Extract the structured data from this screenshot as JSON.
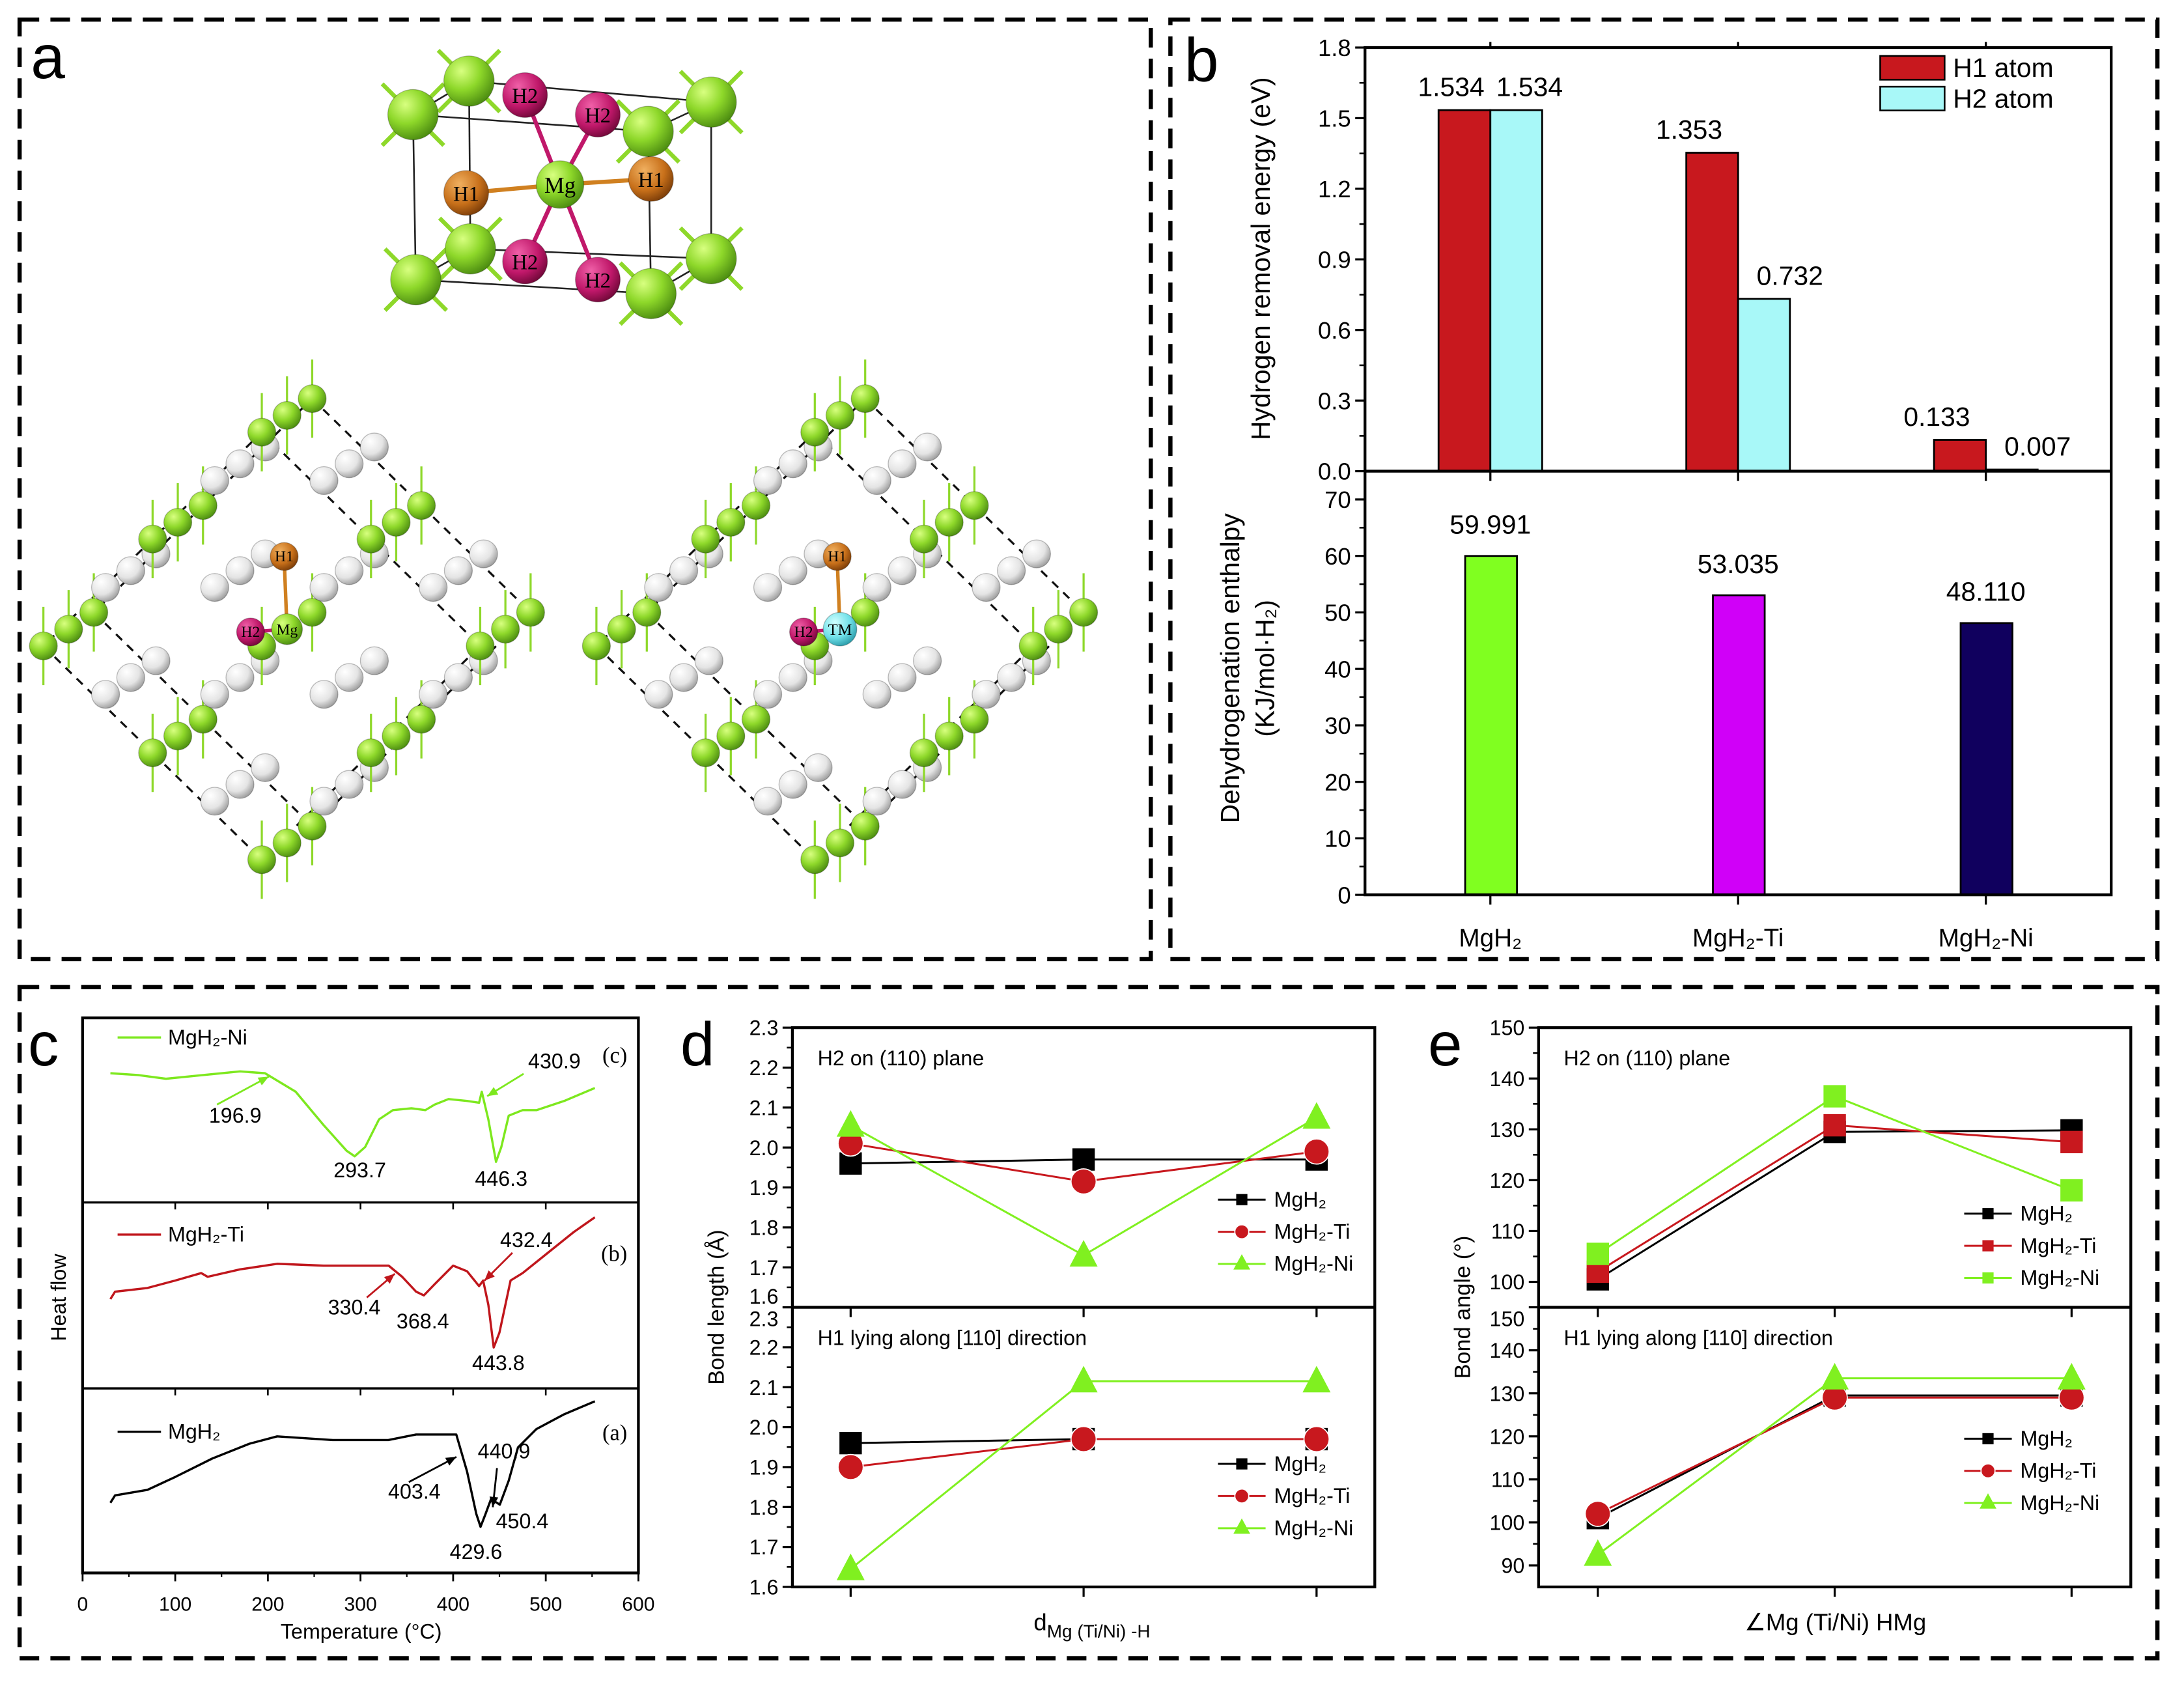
{
  "panel_labels": {
    "a": "a",
    "b": "b",
    "c": "c",
    "d": "d",
    "e": "e"
  },
  "structure_labels": {
    "h1": "H1",
    "h2": "H2",
    "mg": "Mg",
    "tm": "TM"
  },
  "colors": {
    "mg_atom": "#8ed82a",
    "h_atom": "#e8e8e8",
    "h1_atom": "#c8701a",
    "h2_atom": "#c0186a",
    "tm_atom": "#6fe0e8"
  },
  "chart_data": [
    {
      "id": "b-top",
      "type": "bar",
      "categories": [
        "MgH₂",
        "MgH₂-Ti",
        "MgH₂-Ni"
      ],
      "series": [
        {
          "name": "H1 atom",
          "values": [
            1.534,
            1.353,
            0.133
          ],
          "labels": [
            "1.534",
            "1.353",
            "0.133"
          ],
          "color": "#c8181e"
        },
        {
          "name": "H2 atom",
          "values": [
            1.534,
            0.732,
            0.007
          ],
          "labels": [
            "1.534",
            "0.732",
            "0.007"
          ],
          "color": "#a8f8f8"
        }
      ],
      "ylabel": "Hydrogen removal energy (eV)",
      "ylim": [
        0,
        1.8
      ],
      "yticks": [
        "0.0",
        "0.3",
        "0.6",
        "0.9",
        "1.2",
        "1.5",
        "1.8"
      ],
      "legend": "top-right"
    },
    {
      "id": "b-bottom",
      "type": "bar",
      "categories": [
        "MgH₂",
        "MgH₂-Ti",
        "MgH₂-Ni"
      ],
      "values": [
        59.991,
        53.035,
        48.11
      ],
      "labels": [
        "59.991",
        "53.035",
        "48.110"
      ],
      "colors": [
        "#80ff20",
        "#d000f8",
        "#10005e"
      ],
      "ylabel": [
        "Dehydrogenation enthalpy",
        "(KJ/mol·H₂)"
      ],
      "ylim": [
        0,
        75
      ],
      "yticks": [
        "0",
        "10",
        "20",
        "30",
        "40",
        "50",
        "60",
        "70"
      ]
    },
    {
      "id": "c",
      "type": "line",
      "xlabel": "Temperature (°C)",
      "ylabel": "Heat flow",
      "xlim": [
        0,
        600
      ],
      "xticks": [
        "0",
        "100",
        "200",
        "300",
        "400",
        "500",
        "600"
      ],
      "series": [
        {
          "name": "MgH₂-Ni",
          "tag": "(c)",
          "color": "#7de81e",
          "points": [
            [
              30,
              0.7
            ],
            [
              60,
              0.69
            ],
            [
              90,
              0.67
            ],
            [
              130,
              0.69
            ],
            [
              170,
              0.71
            ],
            [
              196.9,
              0.7
            ],
            [
              230,
              0.6
            ],
            [
              260,
              0.42
            ],
            [
              285,
              0.28
            ],
            [
              293.7,
              0.25
            ],
            [
              305,
              0.3
            ],
            [
              320,
              0.45
            ],
            [
              335,
              0.5
            ],
            [
              355,
              0.51
            ],
            [
              370,
              0.5
            ],
            [
              380,
              0.53
            ],
            [
              395,
              0.56
            ],
            [
              415,
              0.55
            ],
            [
              428,
              0.54
            ],
            [
              430.9,
              0.6
            ],
            [
              438,
              0.45
            ],
            [
              446.3,
              0.22
            ],
            [
              452,
              0.3
            ],
            [
              460,
              0.47
            ],
            [
              475,
              0.5
            ],
            [
              490,
              0.5
            ],
            [
              520,
              0.55
            ],
            [
              553,
              0.62
            ]
          ],
          "annotations": [
            "196.9",
            "293.7",
            "430.9",
            "446.3"
          ]
        },
        {
          "name": "MgH₂-Ti",
          "tag": "(b)",
          "color": "#c0161c",
          "points": [
            [
              30,
              0.48
            ],
            [
              35,
              0.52
            ],
            [
              70,
              0.54
            ],
            [
              100,
              0.58
            ],
            [
              128,
              0.62
            ],
            [
              135,
              0.6
            ],
            [
              170,
              0.64
            ],
            [
              210,
              0.67
            ],
            [
              260,
              0.66
            ],
            [
              330.4,
              0.66
            ],
            [
              345,
              0.6
            ],
            [
              360,
              0.52
            ],
            [
              368.4,
              0.5
            ],
            [
              380,
              0.56
            ],
            [
              400,
              0.66
            ],
            [
              415,
              0.63
            ],
            [
              428,
              0.55
            ],
            [
              432.4,
              0.58
            ],
            [
              438,
              0.45
            ],
            [
              443.8,
              0.22
            ],
            [
              450,
              0.3
            ],
            [
              462,
              0.58
            ],
            [
              475,
              0.62
            ],
            [
              500,
              0.72
            ],
            [
              530,
              0.84
            ],
            [
              553,
              0.92
            ]
          ],
          "annotations": [
            "330.4",
            "368.4",
            "432.4",
            "443.8"
          ]
        },
        {
          "name": "MgH₂",
          "tag": "(a)",
          "color": "#000000",
          "points": [
            [
              30,
              0.38
            ],
            [
              35,
              0.42
            ],
            [
              70,
              0.45
            ],
            [
              100,
              0.52
            ],
            [
              140,
              0.62
            ],
            [
              180,
              0.7
            ],
            [
              210,
              0.74
            ],
            [
              270,
              0.72
            ],
            [
              330,
              0.72
            ],
            [
              360,
              0.75
            ],
            [
              403.4,
              0.75
            ],
            [
              415,
              0.55
            ],
            [
              425,
              0.32
            ],
            [
              429.6,
              0.25
            ],
            [
              435,
              0.32
            ],
            [
              440.9,
              0.4
            ],
            [
              450.4,
              0.37
            ],
            [
              460,
              0.5
            ],
            [
              470,
              0.68
            ],
            [
              490,
              0.78
            ],
            [
              520,
              0.86
            ],
            [
              553,
              0.93
            ]
          ],
          "annotations": [
            "403.4",
            "440.9",
            "450.4",
            "429.6"
          ]
        }
      ]
    },
    {
      "id": "d-top",
      "type": "line",
      "title": "H2 on (110) plane",
      "ylim": [
        1.6,
        2.3
      ],
      "yticks": [
        "1.6",
        "1.7",
        "1.8",
        "1.9",
        "2.0",
        "2.1",
        "2.2",
        "2.3"
      ],
      "series": [
        {
          "name": "MgH₂",
          "values": [
            1.96,
            1.97,
            1.97
          ],
          "color": "#000000",
          "marker": "square"
        },
        {
          "name": "MgH₂-Ti",
          "values": [
            2.01,
            1.915,
            1.99
          ],
          "color": "#c8181e",
          "marker": "circle"
        },
        {
          "name": "MgH₂-Ni",
          "values": [
            2.055,
            1.73,
            2.075
          ],
          "color": "#80f020",
          "marker": "triangle"
        }
      ]
    },
    {
      "id": "d-bottom",
      "type": "line",
      "title": "H1 lying along [110] direction",
      "ylim": [
        1.6,
        2.3
      ],
      "yticks": [
        "1.6",
        "1.7",
        "1.8",
        "1.9",
        "2.0",
        "2.1",
        "2.2",
        "2.3"
      ],
      "series": [
        {
          "name": "MgH₂",
          "values": [
            1.96,
            1.97,
            1.97
          ],
          "color": "#000000",
          "marker": "square"
        },
        {
          "name": "MgH₂-Ti",
          "values": [
            1.9,
            1.97,
            1.97
          ],
          "color": "#c8181e",
          "marker": "circle"
        },
        {
          "name": "MgH₂-Ni",
          "values": [
            1.645,
            2.115,
            2.115
          ],
          "color": "#80f020",
          "marker": "triangle"
        }
      ],
      "ylabel": "Bond length (Å)",
      "xlabel": "d",
      "xlabel_sub": "Mg (Ti/Ni) -H"
    },
    {
      "id": "e-top",
      "type": "line",
      "title": "H2 on (110) plane",
      "ylim": [
        95,
        150
      ],
      "yticks": [
        "100",
        "110",
        "120",
        "130",
        "140",
        "150"
      ],
      "series": [
        {
          "name": "MgH₂",
          "values": [
            100.5,
            129.5,
            129.8
          ],
          "color": "#000000",
          "marker": "square"
        },
        {
          "name": "MgH₂-Ti",
          "values": [
            102,
            130.8,
            127.5
          ],
          "color": "#c8181e",
          "marker": "square"
        },
        {
          "name": "MgH₂-Ni",
          "values": [
            105.5,
            136.5,
            118
          ],
          "color": "#80f020",
          "marker": "square"
        }
      ]
    },
    {
      "id": "e-bottom",
      "type": "line",
      "title": "H1 lying along [110] direction",
      "ylim": [
        85,
        150
      ],
      "yticks": [
        "90",
        "100",
        "110",
        "120",
        "130",
        "140",
        "150"
      ],
      "series": [
        {
          "name": "MgH₂",
          "values": [
            101,
            129.5,
            129.5
          ],
          "color": "#000000",
          "marker": "square"
        },
        {
          "name": "MgH₂-Ti",
          "values": [
            102,
            129,
            129
          ],
          "color": "#c8181e",
          "marker": "circle"
        },
        {
          "name": "MgH₂-Ni",
          "values": [
            92.5,
            133.5,
            133.5
          ],
          "color": "#80f020",
          "marker": "triangle"
        }
      ],
      "ylabel": "Bond angle (°)",
      "xlabel": "∠Mg (Ti/Ni) HMg"
    }
  ]
}
